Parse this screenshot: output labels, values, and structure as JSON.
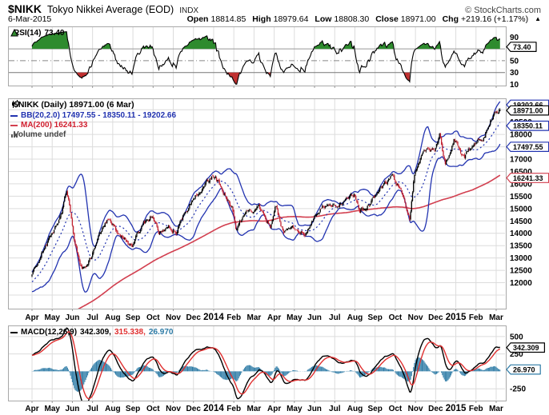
{
  "header": {
    "symbol": "$NIKK",
    "title": "Tokyo Nikkei Average (EOD)",
    "exchange": "INDX",
    "copyright": "© StockCharts.com",
    "date": "6-Mar-2015",
    "ohlc": [
      {
        "label": "Open",
        "value": "18814.85"
      },
      {
        "label": "High",
        "value": "18979.64"
      },
      {
        "label": "Low",
        "value": "18808.30"
      },
      {
        "label": "Close",
        "value": "18971.00"
      },
      {
        "label": "Chg",
        "value": "+219.16 (+1.17%)"
      }
    ],
    "arrow": "▲"
  },
  "legends": {
    "rsi": {
      "label": "RSI(14)",
      "value": "73.40"
    },
    "main": {
      "symbol_line": "$NIKK (Daily) 18971.00 (6 Mar)",
      "bb_line": "BB(20,2.0) 17497.55 - 18350.11 - 19202.66",
      "ma_line": "MA(200) 16241.33",
      "volume_line": "Volume undef"
    },
    "macd": {
      "label": "MACD(12,26,9)",
      "v1": "342.309,",
      "v2": "315.338,",
      "v3": "26.970"
    }
  },
  "colors": {
    "up": "#000000",
    "down": "#c01f2f",
    "bb": "#2233b0",
    "ma": "#d23f4f",
    "macd": "#000000",
    "signal": "#e03030",
    "hist": "#2d7ba6",
    "grid": "#dcdcdc",
    "panel_border": "#a8a8a8",
    "rsi_line": "#000000",
    "rsi_over": "#2e8b2e",
    "rsi_under": "#c03030"
  },
  "xaxis": {
    "months": [
      "Apr",
      "May",
      "Jun",
      "Jul",
      "Aug",
      "Sep",
      "Oct",
      "Nov",
      "Dec",
      "2014",
      "Feb",
      "Mar",
      "Apr",
      "May",
      "Jun",
      "Jul",
      "Aug",
      "Sep",
      "Oct",
      "Nov",
      "Dec",
      "2015",
      "Feb",
      "Mar"
    ],
    "years_bold": [
      9,
      21
    ],
    "days_per_month": 21,
    "total_days": 488
  },
  "chart_data": [
    {
      "type": "line",
      "panel": "rsi",
      "title": "RSI(14)",
      "value": 73.4,
      "ylim": [
        8,
        108
      ],
      "yticks": [
        10,
        30,
        50,
        70,
        90
      ],
      "overbought": 70,
      "midline": 50,
      "oversold": 30,
      "legend_position": "top-left",
      "callouts": [
        {
          "text": "73.40",
          "v": 73.4,
          "color": "#000000"
        }
      ]
    },
    {
      "type": "candlestick",
      "panel": "main",
      "symbol": "$NIKK",
      "timeframe": "Daily",
      "close": 18971.0,
      "date_label": "6 Mar",
      "seed": 20150306,
      "bb": {
        "period": 20,
        "stdev": 2.0,
        "lower": 17497.55,
        "mid": 18350.11,
        "upper": 19202.66
      },
      "ma200": 16241.33,
      "volume": "undef",
      "ylim": [
        10950,
        19460
      ],
      "ytick_step": 500,
      "ytick_range": [
        12000,
        19000
      ],
      "grid": true,
      "price_anchors": [
        [
          0,
          12400
        ],
        [
          10,
          13250
        ],
        [
          21,
          13950
        ],
        [
          31,
          14900
        ],
        [
          36,
          15650
        ],
        [
          38,
          15300
        ],
        [
          44,
          13850
        ],
        [
          52,
          12500
        ],
        [
          62,
          13100
        ],
        [
          70,
          14150
        ],
        [
          78,
          14550
        ],
        [
          88,
          14050
        ],
        [
          97,
          13650
        ],
        [
          104,
          13400
        ],
        [
          116,
          14450
        ],
        [
          125,
          14750
        ],
        [
          132,
          13950
        ],
        [
          142,
          14450
        ],
        [
          150,
          14100
        ],
        [
          166,
          15400
        ],
        [
          172,
          15650
        ],
        [
          188,
          16300
        ],
        [
          196,
          15900
        ],
        [
          208,
          15050
        ],
        [
          212,
          14050
        ],
        [
          225,
          14850
        ],
        [
          236,
          15150
        ],
        [
          248,
          14300
        ],
        [
          254,
          15050
        ],
        [
          262,
          13950
        ],
        [
          272,
          14300
        ],
        [
          284,
          14100
        ],
        [
          293,
          14650
        ],
        [
          304,
          15100
        ],
        [
          314,
          15150
        ],
        [
          325,
          15400
        ],
        [
          335,
          15620
        ],
        [
          341,
          14830
        ],
        [
          356,
          15430
        ],
        [
          367,
          15950
        ],
        [
          375,
          16280
        ],
        [
          384,
          15680
        ],
        [
          393,
          14550
        ],
        [
          398,
          16400
        ],
        [
          408,
          17500
        ],
        [
          419,
          17450
        ],
        [
          424,
          17950
        ],
        [
          430,
          16800
        ],
        [
          439,
          17900
        ],
        [
          450,
          17100
        ],
        [
          460,
          17650
        ],
        [
          470,
          17950
        ],
        [
          480,
          18780
        ],
        [
          487,
          18971
        ]
      ],
      "callouts": [
        {
          "text": "19202.66",
          "v": 19202.66,
          "color": "#2233b0"
        },
        {
          "text": "18350.11",
          "v": 18350.11,
          "color": "#2233b0"
        },
        {
          "text": "17497.55",
          "v": 17497.55,
          "color": "#2233b0"
        },
        {
          "text": "16241.33",
          "v": 16241.33,
          "color": "#d23f4f"
        },
        {
          "text": "18971.00",
          "v": 18971.0,
          "color": "#000000"
        }
      ]
    },
    {
      "type": "macd",
      "panel": "macd",
      "params": [
        12,
        26,
        9
      ],
      "macd_value": 342.309,
      "signal_value": 315.338,
      "hist_value": 26.97,
      "ylim": [
        -420,
        660
      ],
      "yticks": [
        -250,
        0,
        250,
        500
      ],
      "callouts": [
        {
          "text": "342.309",
          "v": 342.309,
          "color": "#000000"
        },
        {
          "text": "26.970",
          "v": 26.97,
          "color": "#2d7ba6"
        }
      ]
    }
  ]
}
